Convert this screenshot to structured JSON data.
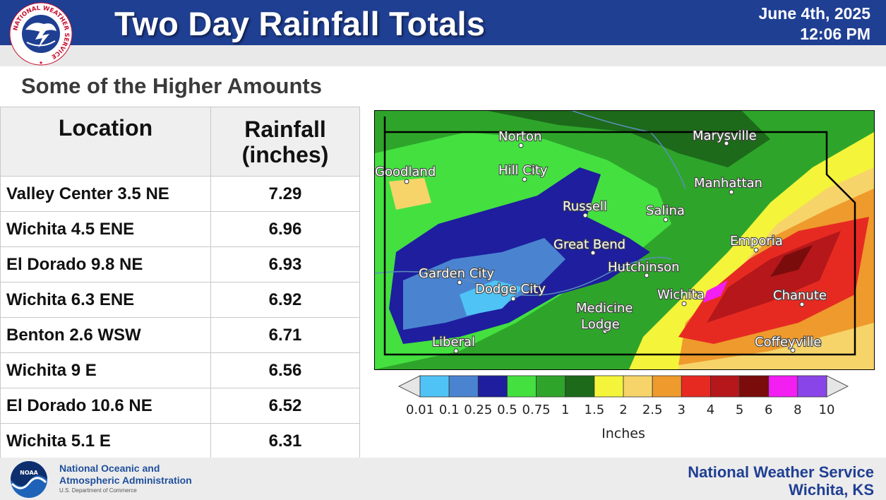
{
  "header": {
    "title": "Two Day Rainfall Totals",
    "date": "June 4th, 2025",
    "time": "12:06 PM"
  },
  "logos": {
    "nws_emblem_text": "NATIONAL WEATHER SERVICE",
    "noaa_emblem_text": "NOAA"
  },
  "subtitle": "Some of the Higher Amounts",
  "table": {
    "col_location": "Location",
    "col_rainfall_line1": "Rainfall",
    "col_rainfall_line2": "(inches)",
    "rows": [
      {
        "location": "Valley Center 3.5 NE",
        "value": "7.29"
      },
      {
        "location": "Wichita 4.5 ENE",
        "value": "6.96"
      },
      {
        "location": "El Dorado 9.8 NE",
        "value": "6.93"
      },
      {
        "location": "Wichita 6.3 ENE",
        "value": "6.92"
      },
      {
        "location": "Benton 2.6 WSW",
        "value": "6.71"
      },
      {
        "location": "Wichita 9 E",
        "value": "6.56"
      },
      {
        "location": "El Dorado 10.6 NE",
        "value": "6.52"
      },
      {
        "location": "Wichita 5.1 E",
        "value": "6.31"
      }
    ]
  },
  "map": {
    "cities": [
      "Norton",
      "Marysville",
      "Goodland",
      "Hill City",
      "Manhattan",
      "Russell",
      "Salina",
      "Emporia",
      "Great Bend",
      "Hutchinson",
      "Garden City",
      "Dodge City",
      "Wichita",
      "Chanute",
      "Medicine",
      "Lodge",
      "Liberal",
      "Coffeyville"
    ]
  },
  "legend": {
    "ticks": [
      "0.01",
      "0.1",
      "0.25",
      "0.5",
      "0.75",
      "1",
      "1.5",
      "2",
      "2.5",
      "3",
      "4",
      "5",
      "6",
      "8",
      "10"
    ],
    "colors": [
      "#4fc3f5",
      "#4a84d0",
      "#1e1e9e",
      "#44e040",
      "#2ea52a",
      "#1d6a1a",
      "#f4f43a",
      "#f6d46a",
      "#ef9a2c",
      "#e62a22",
      "#b5171a",
      "#7a0c0c",
      "#f21ef2",
      "#8a45e8"
    ],
    "unit": "Inches"
  },
  "footer": {
    "noaa_line1": "National Oceanic and",
    "noaa_line2": "Atmospheric Administration",
    "noaa_sub": "U.S. Department of Commerce",
    "nws_line1": "National Weather Service",
    "nws_line2": "Wichita, KS"
  }
}
